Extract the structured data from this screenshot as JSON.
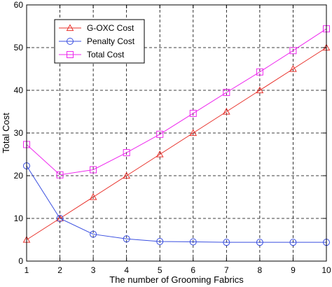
{
  "chart_data": {
    "type": "line",
    "xlabel": "The number of Grooming Fabrics",
    "ylabel": "Total Cost",
    "xlim": [
      1,
      10
    ],
    "ylim": [
      0,
      60
    ],
    "xticks": [
      1,
      2,
      3,
      4,
      5,
      6,
      7,
      8,
      9,
      10
    ],
    "yticks": [
      0,
      10,
      20,
      30,
      40,
      50,
      60
    ],
    "grid": true,
    "legend_position": "top-left",
    "x": [
      1,
      2,
      3,
      4,
      5,
      6,
      7,
      8,
      9,
      10
    ],
    "series": [
      {
        "name": "G-OXC Cost",
        "color": "#e8302a",
        "marker": "triangle",
        "values": [
          5,
          10,
          15,
          20,
          25,
          30,
          35,
          40,
          45,
          50
        ]
      },
      {
        "name": "Penalty Cost",
        "color": "#3a4fe0",
        "marker": "circle",
        "values": [
          22.3,
          10,
          6.3,
          5.2,
          4.6,
          4.5,
          4.4,
          4.4,
          4.4,
          4.4
        ]
      },
      {
        "name": "Total Cost",
        "color": "#ee28ee",
        "marker": "square",
        "values": [
          27.3,
          20.2,
          21.4,
          25.4,
          29.7,
          34.6,
          39.5,
          44.3,
          49.3,
          54.4
        ]
      }
    ]
  }
}
